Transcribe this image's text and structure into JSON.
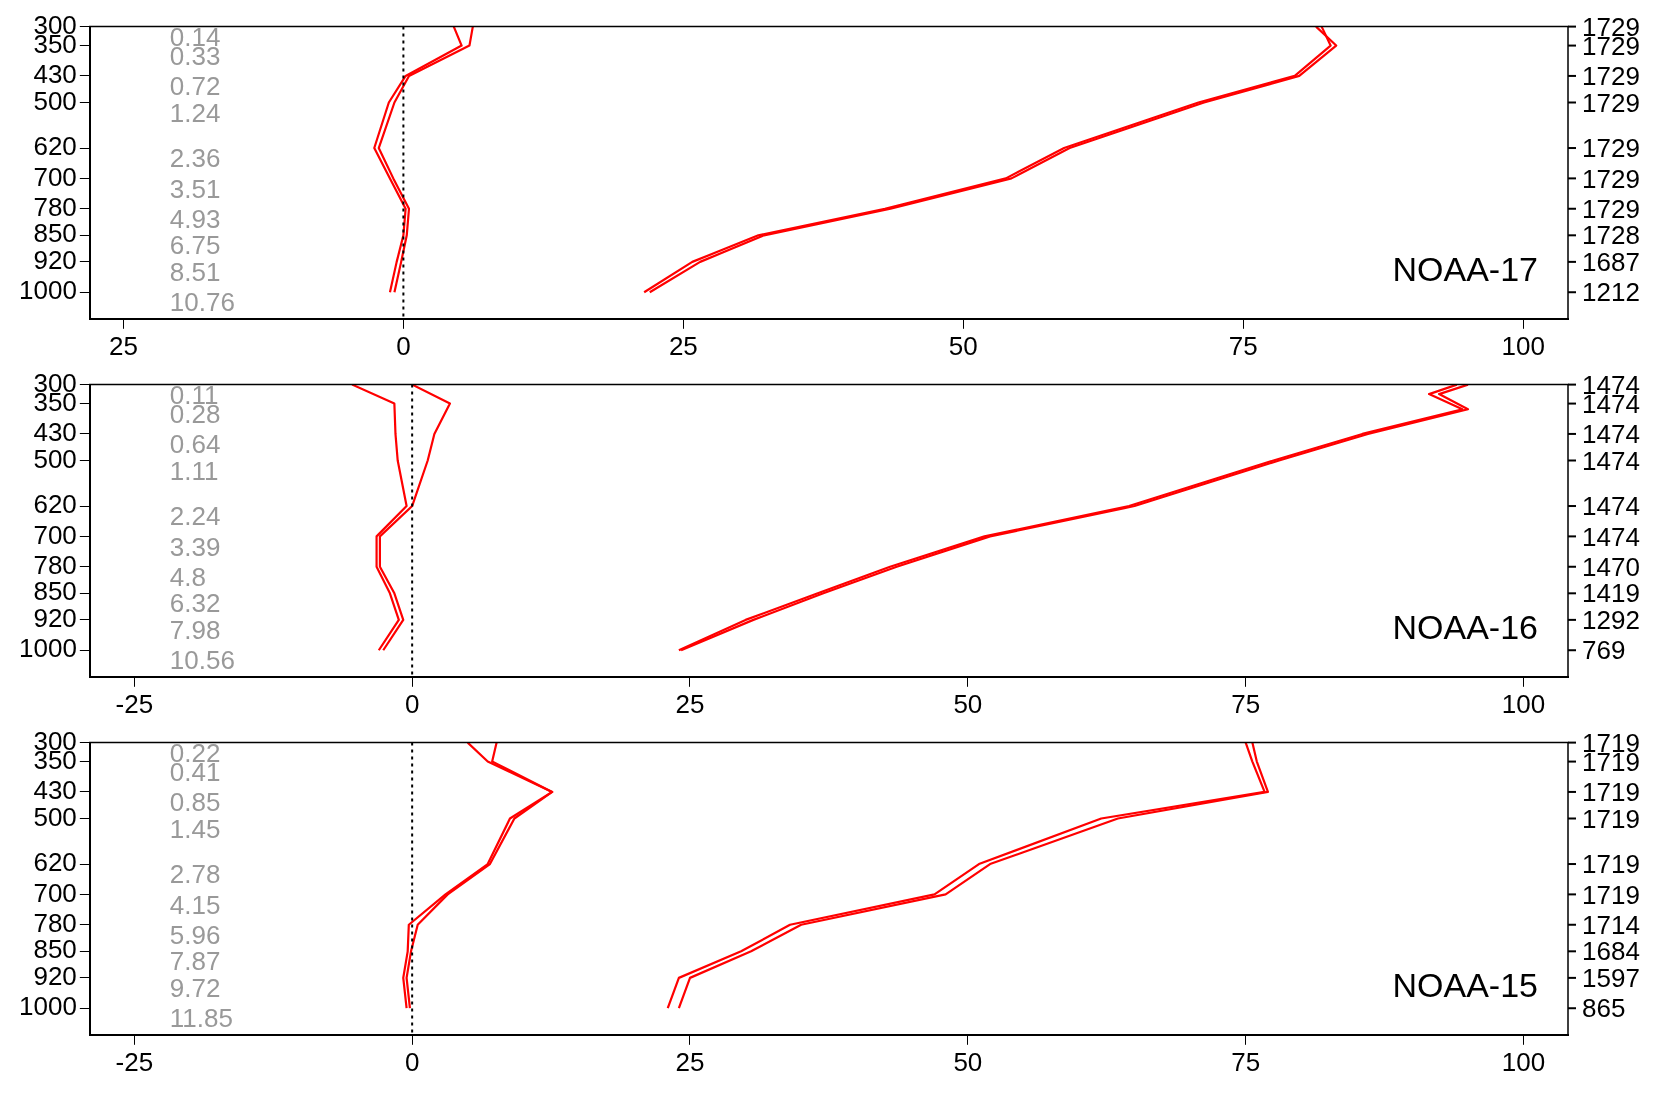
{
  "chart_data": [
    {
      "type": "line",
      "annotations": [
        "NOAA-17",
        "0.14",
        "0.33",
        "0.72",
        "1.24",
        "2.36",
        "3.51",
        "4.93",
        "6.75",
        "8.51",
        "10.76",
        "1729",
        "1729",
        "1729",
        "1729",
        "1729",
        "1729",
        "1729",
        "1728",
        "1687",
        "1212"
      ],
      "xlim": [
        -28,
        104
      ],
      "xticks": [
        {
          "value": -25,
          "label": "25"
        },
        0,
        25,
        50,
        75,
        100
      ],
      "ylim": [
        1070,
        300
      ],
      "yticks": [
        300,
        350,
        430,
        500,
        620,
        700,
        780,
        850,
        920,
        1000
      ],
      "grid": false,
      "legend": false,
      "marker": "none",
      "line_style": "solid",
      "ref_lines": [
        {
          "axis": "x",
          "value": 0,
          "color": "#000000",
          "line_style": "dotted"
        }
      ],
      "series": [
        {
          "color": "#ff0000",
          "x": [
            6.2,
            5.9,
            0.5,
            -0.8,
            -2.2,
            -0.9,
            0.5,
            0.3,
            -0.2,
            -0.8
          ],
          "values": [
            300,
            350,
            430,
            500,
            620,
            700,
            780,
            850,
            920,
            1000
          ]
        },
        {
          "color": "#ff0000",
          "x": [
            4.5,
            5.2,
            0.2,
            -1.3,
            -2.6,
            -1.2,
            0.2,
            0,
            -0.6,
            -1.2
          ],
          "values": [
            300,
            350,
            430,
            500,
            620,
            700,
            780,
            850,
            920,
            1000
          ]
        },
        {
          "color": "#ff0000",
          "x": [
            82,
            82.8,
            79.6,
            71,
            59,
            53.8,
            43,
            31.7,
            25.8,
            21.5
          ],
          "values": [
            300,
            350,
            430,
            500,
            620,
            700,
            780,
            850,
            920,
            1000
          ]
        },
        {
          "color": "#ff0000",
          "x": [
            81.5,
            83.3,
            80,
            71.5,
            59.5,
            54.3,
            43.5,
            32.2,
            26.5,
            22
          ],
          "values": [
            300,
            350,
            430,
            500,
            620,
            700,
            780,
            850,
            920,
            1000
          ]
        }
      ]
    },
    {
      "type": "line",
      "annotations": [
        "NOAA-16",
        "0.11",
        "0.28",
        "0.64",
        "1.11",
        "2.24",
        "3.39",
        "4.8",
        "6.32",
        "7.98",
        "10.56",
        "1474",
        "1474",
        "1474",
        "1474",
        "1474",
        "1474",
        "1470",
        "1419",
        "1292",
        "769"
      ],
      "xlim": [
        -29,
        104
      ],
      "xticks": [
        -25,
        0,
        25,
        50,
        75,
        100
      ],
      "ylim": [
        1070,
        300
      ],
      "yticks": [
        300,
        350,
        430,
        500,
        620,
        700,
        780,
        850,
        920,
        1000
      ],
      "grid": false,
      "legend": false,
      "marker": "none",
      "line_style": "solid",
      "ref_lines": [
        {
          "axis": "x",
          "value": 0,
          "color": "#000000",
          "line_style": "dotted"
        }
      ],
      "series": [
        {
          "color": "#ff0000",
          "x": [
            0,
            3.4,
            2,
            1.4,
            0,
            -2.9,
            -2.9,
            -1.6,
            -0.8,
            -2.6
          ],
          "values": [
            300,
            350,
            430,
            500,
            620,
            700,
            780,
            850,
            920,
            1000
          ]
        },
        {
          "color": "#ff0000",
          "x": [
            -5.4,
            -1.6,
            -1.5,
            -1.3,
            -0.5,
            -3.2,
            -3.2,
            -2,
            -1.2,
            -3
          ],
          "values": [
            300,
            350,
            430,
            500,
            620,
            700,
            780,
            850,
            920,
            1000
          ]
        },
        {
          "color": "#ff0000",
          "x": [
            95,
            92.4,
            95,
            86,
            78,
            65,
            52,
            43.6,
            37,
            30.7,
            24.2
          ],
          "values": [
            300,
            325,
            365,
            430,
            500,
            620,
            700,
            780,
            850,
            920,
            1000
          ]
        },
        {
          "color": "#ff0000",
          "x": [
            94,
            91.5,
            94.5,
            85.5,
            77.5,
            64.5,
            51.5,
            43,
            36.5,
            30,
            24
          ],
          "values": [
            300,
            325,
            365,
            430,
            500,
            620,
            700,
            780,
            850,
            920,
            1000
          ]
        }
      ]
    },
    {
      "type": "line",
      "annotations": [
        "NOAA-15",
        "0.22",
        "0.41",
        "0.85",
        "1.45",
        "2.78",
        "4.15",
        "5.96",
        "7.87",
        "9.72",
        "11.85",
        "1719",
        "1719",
        "1719",
        "1719",
        "1719",
        "1719",
        "1714",
        "1684",
        "1597",
        "865"
      ],
      "xlim": [
        -29,
        104
      ],
      "xticks": [
        -25,
        0,
        25,
        50,
        75,
        100
      ],
      "ylim": [
        1070,
        300
      ],
      "yticks": [
        300,
        350,
        430,
        500,
        620,
        700,
        780,
        850,
        920,
        1000
      ],
      "grid": false,
      "legend": false,
      "marker": "none",
      "line_style": "solid",
      "ref_lines": [
        {
          "axis": "x",
          "value": 0,
          "color": "#000000",
          "line_style": "dotted"
        }
      ],
      "series": [
        {
          "color": "#ff0000",
          "x": [
            7.6,
            7.2,
            12.6,
            8.8,
            6.8,
            3,
            -0.3,
            -0.4,
            -0.8,
            -0.5
          ],
          "values": [
            300,
            350,
            430,
            500,
            620,
            700,
            780,
            850,
            920,
            1000
          ]
        },
        {
          "color": "#ff0000",
          "x": [
            5,
            6.8,
            12.6,
            9.2,
            7,
            3.2,
            0.5,
            -0.1,
            -0.5,
            -0.2
          ],
          "values": [
            300,
            350,
            430,
            500,
            620,
            700,
            780,
            850,
            920,
            1000
          ]
        },
        {
          "color": "#ff0000",
          "x": [
            75,
            75.6,
            76.7,
            62,
            51,
            47,
            34,
            29.6,
            24,
            23
          ],
          "values": [
            300,
            350,
            430,
            500,
            620,
            700,
            780,
            850,
            920,
            1000
          ]
        },
        {
          "color": "#ff0000",
          "x": [
            75.6,
            76,
            77,
            63.5,
            52,
            48,
            35,
            30.5,
            25,
            24
          ],
          "values": [
            300,
            350,
            430,
            500,
            620,
            700,
            780,
            850,
            920,
            1000
          ]
        }
      ]
    }
  ]
}
